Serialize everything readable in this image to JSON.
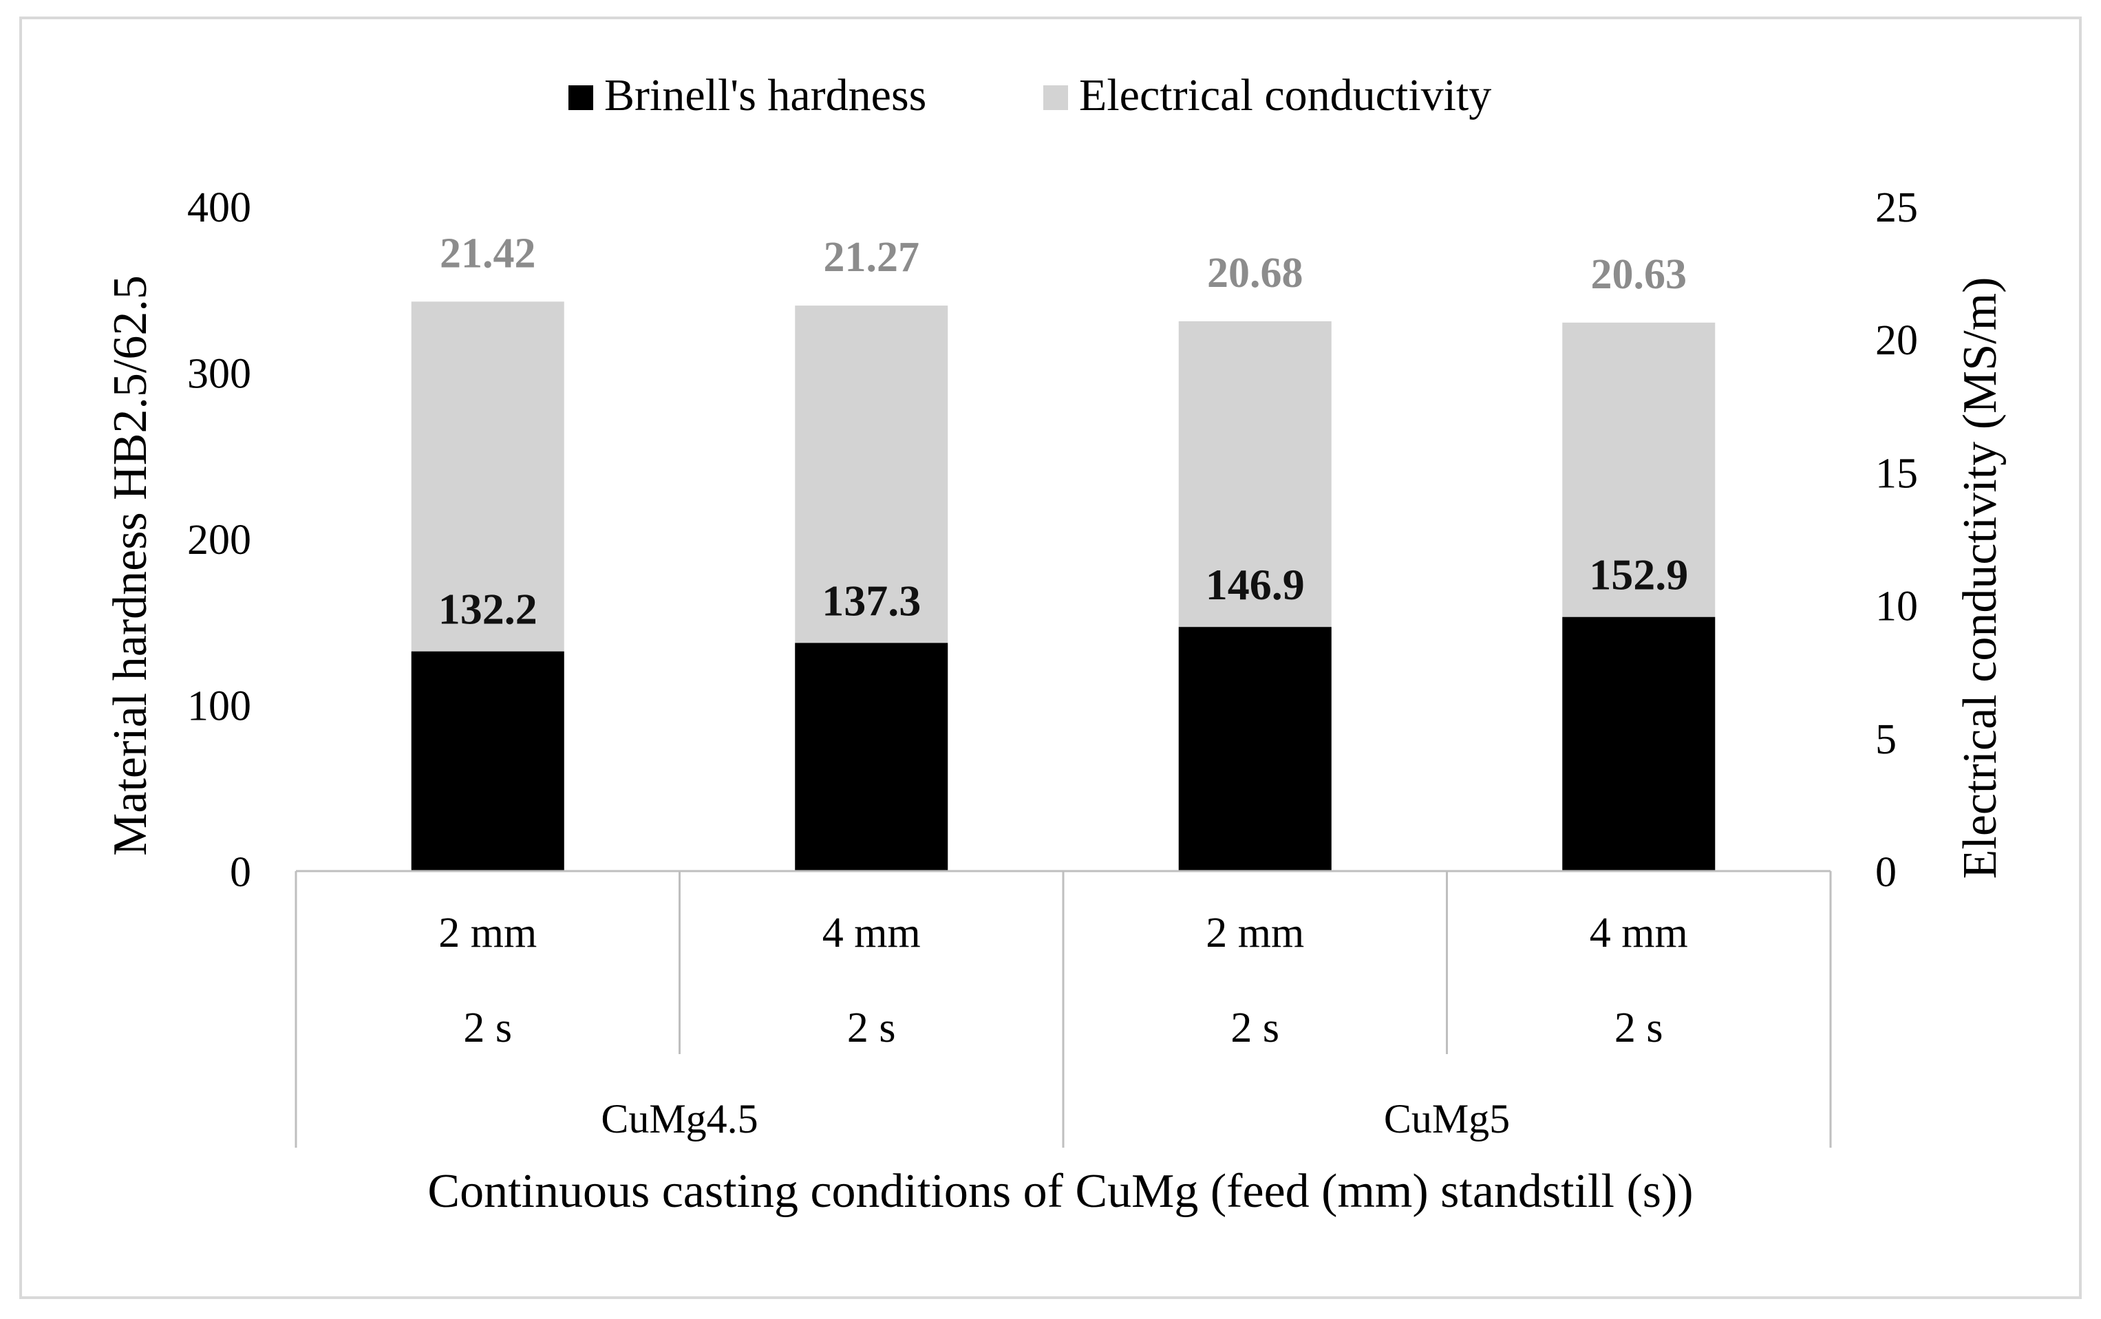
{
  "chart_data": {
    "type": "bar",
    "title": "",
    "legend": {
      "placement": "top-center",
      "entries": [
        "Brinell's hardness",
        "Electrical conductivity"
      ]
    },
    "xlabel": "Continuous casting conditions of CuMg (feed (mm) standstill (s))",
    "ylabel_left": "Material hardness HB2.5/62.5",
    "ylabel_right": "Electrical conductivity (MS/m)",
    "ylim_left": [
      0,
      400
    ],
    "ylim_right": [
      0,
      25
    ],
    "yticks_left": [
      "0",
      "100",
      "200",
      "300",
      "400"
    ],
    "yticks_right": [
      "0",
      "5",
      "10",
      "15",
      "20",
      "25"
    ],
    "grid": false,
    "categories": [
      {
        "feed": "2 mm",
        "standstill": "2 s",
        "group": "CuMg4.5"
      },
      {
        "feed": "4 mm",
        "standstill": "2 s",
        "group": "CuMg4.5"
      },
      {
        "feed": "2 mm",
        "standstill": "2 s",
        "group": "CuMg5"
      },
      {
        "feed": "4 mm",
        "standstill": "2 s",
        "group": "CuMg5"
      }
    ],
    "groups": [
      "CuMg4.5",
      "CuMg5"
    ],
    "series": [
      {
        "name": "Brinell's hardness",
        "axis": "left",
        "color": "#000000",
        "label_color": "#111111",
        "values": [
          132.2,
          137.3,
          146.9,
          152.9
        ],
        "labels": [
          "132.2",
          "137.3",
          "146.9",
          "152.9"
        ]
      },
      {
        "name": "Electrical conductivity",
        "axis": "right",
        "color": "#d3d3d3",
        "label_color": "#8c8c8c",
        "values": [
          21.42,
          21.27,
          20.68,
          20.63
        ],
        "labels": [
          "21.42",
          "21.27",
          "20.68",
          "20.63"
        ]
      }
    ]
  }
}
